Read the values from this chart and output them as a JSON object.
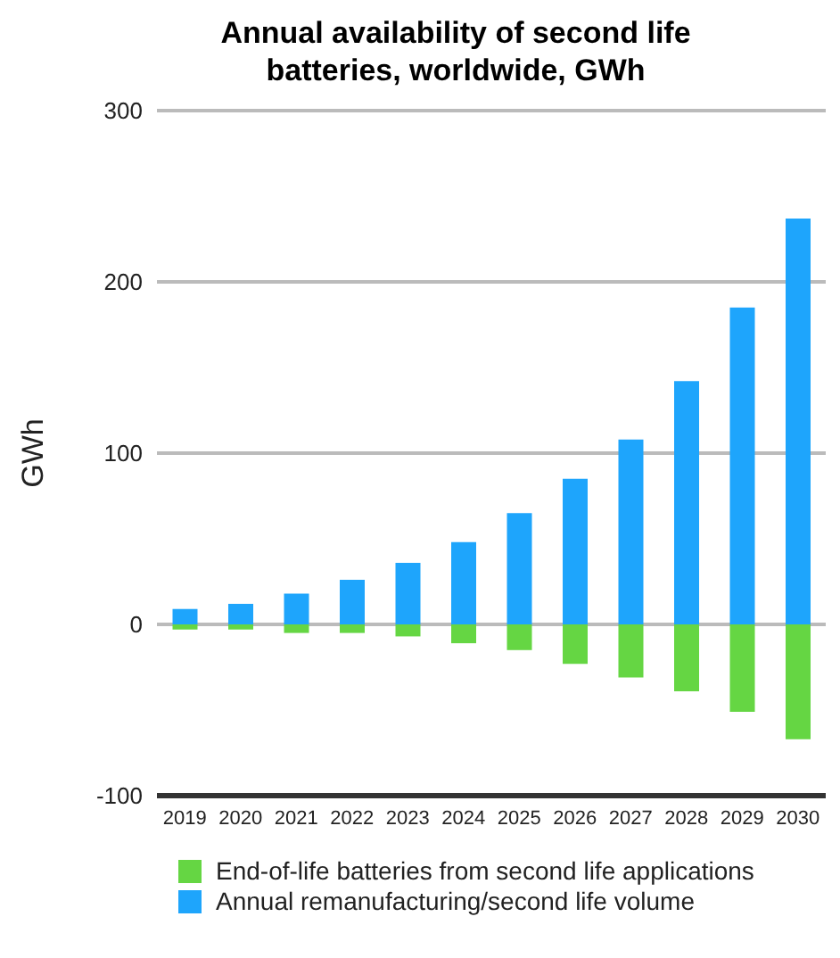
{
  "chart_data": {
    "type": "bar",
    "title": "Annual availability of second life batteries, worldwide, GWh",
    "ylabel": "GWh",
    "categories": [
      "2019",
      "2020",
      "2021",
      "2022",
      "2023",
      "2024",
      "2025",
      "2026",
      "2027",
      "2028",
      "2029",
      "2030"
    ],
    "stacked": true,
    "series": [
      {
        "name": "End-of-life batteries from second life applications",
        "color": "#65d643",
        "values": [
          -3,
          -3,
          -5,
          -5,
          -7,
          -11,
          -15,
          -23,
          -31,
          -39,
          -51,
          -67
        ]
      },
      {
        "name": "Annual remanufacturing/second life volume",
        "color": "#1ea5fc",
        "values": [
          9,
          12,
          18,
          26,
          36,
          48,
          65,
          85,
          108,
          142,
          185,
          237
        ]
      }
    ],
    "ylim": [
      -100,
      300
    ],
    "yticks": [
      -100,
      0,
      100,
      200,
      300
    ],
    "grid": "y",
    "legend": "bottom"
  }
}
